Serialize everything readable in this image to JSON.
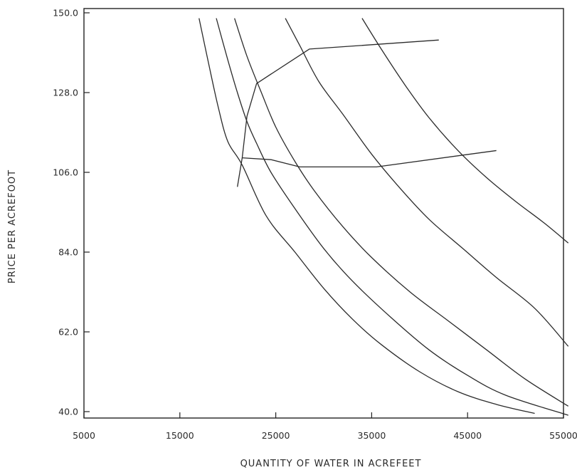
{
  "chart_data": {
    "type": "line",
    "title": "",
    "xlabel": "QUANTITY OF WATER IN ACREFEET",
    "ylabel": "PRICE PER ACREFOOT",
    "xlim": [
      5000,
      55000
    ],
    "ylim": [
      40.0,
      150.0
    ],
    "x_ticks": [
      5000,
      15000,
      25000,
      35000,
      45000,
      55000
    ],
    "x_tick_labels": [
      "5000",
      "15000",
      "25000",
      "35000",
      "45000",
      "55000"
    ],
    "y_ticks": [
      40.0,
      62.0,
      84.0,
      106.0,
      128.0,
      150.0
    ],
    "y_tick_labels": [
      "40.0",
      "62.0",
      "84.0",
      "106.0",
      "128.0",
      "150.0"
    ],
    "grid": false,
    "legend": "none",
    "series": [
      {
        "values": [
          [
            17000,
            148.5
          ],
          [
            18000,
            136
          ],
          [
            19000,
            124
          ],
          [
            20000,
            114.5
          ],
          [
            21500,
            108
          ],
          [
            24000,
            94
          ],
          [
            27000,
            84
          ],
          [
            30000,
            74
          ],
          [
            33000,
            65.5
          ],
          [
            36000,
            58.5
          ],
          [
            40000,
            51
          ],
          [
            44000,
            45.5
          ],
          [
            48000,
            42
          ],
          [
            52000,
            39.5
          ]
        ]
      },
      {
        "values": [
          [
            18800,
            148.5
          ],
          [
            20000,
            137
          ],
          [
            21000,
            128
          ],
          [
            22000,
            120
          ],
          [
            23000,
            114
          ],
          [
            24500,
            106
          ],
          [
            27000,
            96
          ],
          [
            30000,
            85
          ],
          [
            33000,
            76
          ],
          [
            37000,
            66
          ],
          [
            41000,
            57
          ],
          [
            45000,
            50
          ],
          [
            49000,
            44.5
          ],
          [
            55500,
            39
          ]
        ]
      },
      {
        "values": [
          [
            20700,
            148.5
          ],
          [
            22000,
            138
          ],
          [
            23500,
            128
          ],
          [
            25000,
            118.5
          ],
          [
            27000,
            109
          ],
          [
            29000,
            101
          ],
          [
            32000,
            91
          ],
          [
            35000,
            82.5
          ],
          [
            39000,
            73
          ],
          [
            43000,
            65
          ],
          [
            47000,
            57
          ],
          [
            51000,
            49
          ],
          [
            55500,
            41.5
          ]
        ]
      },
      {
        "values": [
          [
            26000,
            148.5
          ],
          [
            27500,
            141
          ],
          [
            29500,
            131
          ],
          [
            32000,
            122
          ],
          [
            35000,
            111
          ],
          [
            38000,
            101.5
          ],
          [
            41000,
            93
          ],
          [
            44500,
            85
          ],
          [
            48000,
            77
          ],
          [
            52000,
            68.5
          ],
          [
            55500,
            58
          ]
        ]
      },
      {
        "values": [
          [
            34000,
            148.5
          ],
          [
            36000,
            140
          ],
          [
            38500,
            130
          ],
          [
            41000,
            121
          ],
          [
            44000,
            112
          ],
          [
            47000,
            104.5
          ],
          [
            50000,
            98
          ],
          [
            53000,
            92
          ],
          [
            55500,
            86.5
          ]
        ]
      },
      {
        "values": [
          [
            21000,
            102
          ],
          [
            21500,
            110
          ],
          [
            22000,
            121.5
          ],
          [
            23000,
            130.5
          ],
          [
            28500,
            140
          ],
          [
            42000,
            142.5
          ]
        ]
      },
      {
        "values": [
          [
            21500,
            110
          ],
          [
            24500,
            109.5
          ],
          [
            27500,
            107.5
          ],
          [
            35500,
            107.5
          ],
          [
            48000,
            112
          ]
        ]
      }
    ]
  }
}
